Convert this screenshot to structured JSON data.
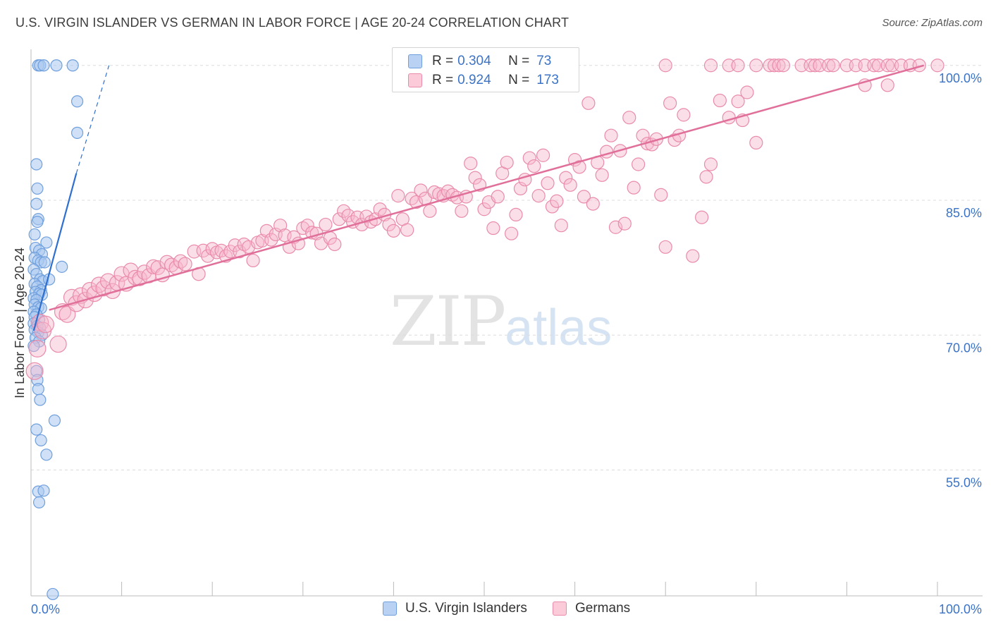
{
  "header": {
    "title": "U.S. VIRGIN ISLANDER VS GERMAN IN LABOR FORCE | AGE 20-24 CORRELATION CHART",
    "source": "Source: ZipAtlas.com"
  },
  "watermark": {
    "zip": "ZIP",
    "atlas": "atlas"
  },
  "legend": {
    "rows": [
      {
        "r_label": "R =",
        "r_value": "0.304",
        "n_label": "N =",
        "n_value": "73"
      },
      {
        "r_label": "R =",
        "r_value": "0.924",
        "n_label": "N =",
        "n_value": "173"
      }
    ]
  },
  "colors": {
    "blue_fill": "#a9c8f0",
    "blue_stroke": "#6f9fdc",
    "blue_line": "#2e6fd0",
    "pink_fill": "#f7b9cd",
    "pink_stroke": "#e98bab",
    "pink_line": "#e0709a",
    "tick_label": "#3b73c7"
  },
  "chart_data": {
    "type": "scatter",
    "title": "U.S. VIRGIN ISLANDER VS GERMAN IN LABOR FORCE | AGE 20-24 CORRELATION CHART",
    "xlabel": "",
    "ylabel": "In Labor Force | Age 20-24",
    "xlim": [
      0,
      100
    ],
    "ylim": [
      41,
      101
    ],
    "x_tick_labels": [
      {
        "value": 0,
        "label": "0.0%"
      },
      {
        "value": 100,
        "label": "100.0%"
      }
    ],
    "y_tick_labels": [
      {
        "value": 100,
        "label": "100.0%"
      },
      {
        "value": 85,
        "label": "85.0%"
      },
      {
        "value": 70,
        "label": "70.0%"
      },
      {
        "value": 55,
        "label": "55.0%"
      }
    ],
    "grid": true,
    "series": [
      {
        "name": "U.S. Virgin Islanders",
        "r": 0.304,
        "n": 73,
        "trend": {
          "x0": 0.3,
          "y0": 70.5,
          "x1": 5.0,
          "y1": 88.0
        },
        "trend_extension": {
          "x0": 5.0,
          "y0": 88.0,
          "x1": 8.6,
          "y1": 100.0
        },
        "points": [
          [
            0.8,
            100
          ],
          [
            1.0,
            100
          ],
          [
            1.4,
            100
          ],
          [
            2.8,
            100
          ],
          [
            4.6,
            100
          ],
          [
            5.1,
            96
          ],
          [
            5.1,
            92.5
          ],
          [
            0.6,
            89
          ],
          [
            0.7,
            86.3
          ],
          [
            0.6,
            84.6
          ],
          [
            0.8,
            82.9
          ],
          [
            0.7,
            82.6
          ],
          [
            0.4,
            81.2
          ],
          [
            1.7,
            80.3
          ],
          [
            0.5,
            79.7
          ],
          [
            0.9,
            79.4
          ],
          [
            1.2,
            79
          ],
          [
            0.4,
            78.6
          ],
          [
            0.8,
            78.3
          ],
          [
            1.1,
            78.1
          ],
          [
            1.5,
            78.1
          ],
          [
            3.4,
            77.6
          ],
          [
            0.3,
            77.3
          ],
          [
            0.6,
            76.8
          ],
          [
            1.0,
            76.2
          ],
          [
            1.3,
            76.0
          ],
          [
            2.0,
            76.2
          ],
          [
            0.4,
            75.7
          ],
          [
            0.7,
            75.4
          ],
          [
            1.1,
            75.0
          ],
          [
            0.5,
            74.8
          ],
          [
            0.9,
            74.6
          ],
          [
            1.2,
            74.5
          ],
          [
            0.3,
            74.1
          ],
          [
            0.6,
            73.9
          ],
          [
            0.4,
            73.4
          ],
          [
            0.8,
            73.1
          ],
          [
            1.1,
            73.0
          ],
          [
            0.3,
            72.6
          ],
          [
            0.6,
            72.3
          ],
          [
            0.4,
            72.0
          ],
          [
            0.9,
            71.7
          ],
          [
            0.3,
            71.3
          ],
          [
            0.7,
            71.0
          ],
          [
            1.0,
            70.8
          ],
          [
            0.4,
            70.6
          ],
          [
            0.8,
            70.3
          ],
          [
            1.2,
            70.0
          ],
          [
            0.5,
            69.7
          ],
          [
            0.9,
            69.3
          ],
          [
            0.3,
            68.8
          ],
          [
            0.6,
            66.0
          ],
          [
            0.7,
            65.0
          ],
          [
            0.8,
            64.0
          ],
          [
            1.0,
            62.8
          ],
          [
            2.6,
            60.5
          ],
          [
            0.6,
            59.5
          ],
          [
            1.1,
            58.3
          ],
          [
            1.7,
            56.7
          ],
          [
            0.8,
            52.6
          ],
          [
            1.4,
            52.7
          ],
          [
            0.9,
            51.4
          ],
          [
            2.4,
            41.2
          ]
        ]
      },
      {
        "name": "Germans",
        "r": 0.924,
        "n": 173,
        "trend": {
          "x0": 2.0,
          "y0": 72.8,
          "x1": 98.5,
          "y1": 100.0
        },
        "points": [
          [
            0.4,
            66
          ],
          [
            0.7,
            68.5
          ],
          [
            1.0,
            71.4
          ],
          [
            1.3,
            70.5
          ],
          [
            1.6,
            71.2
          ],
          [
            3.0,
            69
          ],
          [
            3.5,
            72.6
          ],
          [
            4.0,
            72.3
          ],
          [
            4.5,
            74.2
          ],
          [
            5.0,
            73.5
          ],
          [
            5.5,
            74.4
          ],
          [
            6.0,
            73.9
          ],
          [
            6.5,
            75.0
          ],
          [
            7.0,
            74.6
          ],
          [
            7.5,
            75.6
          ],
          [
            8.0,
            75.2
          ],
          [
            8.5,
            76.0
          ],
          [
            9.0,
            74.9
          ],
          [
            9.5,
            75.8
          ],
          [
            10.0,
            76.8
          ],
          [
            10.5,
            75.7
          ],
          [
            11.0,
            77.2
          ],
          [
            11.5,
            76.4
          ],
          [
            12.0,
            76.3
          ],
          [
            12.5,
            77.0
          ],
          [
            13.0,
            76.6
          ],
          [
            13.5,
            77.6
          ],
          [
            14.0,
            77.5
          ],
          [
            14.5,
            76.7
          ],
          [
            15.0,
            78.1
          ],
          [
            15.5,
            77.8
          ],
          [
            16.0,
            77.5
          ],
          [
            16.5,
            78.2
          ],
          [
            17.0,
            77.9
          ],
          [
            18.0,
            79.3
          ],
          [
            18.5,
            76.8
          ],
          [
            19.0,
            79.4
          ],
          [
            19.5,
            78.8
          ],
          [
            20.0,
            79.6
          ],
          [
            20.5,
            79.2
          ],
          [
            21.0,
            79.4
          ],
          [
            21.5,
            78.8
          ],
          [
            22.0,
            79.3
          ],
          [
            22.5,
            80.0
          ],
          [
            23.0,
            79.3
          ],
          [
            23.5,
            80.1
          ],
          [
            24.0,
            79.8
          ],
          [
            24.5,
            78.3
          ],
          [
            25.0,
            80.3
          ],
          [
            25.5,
            80.5
          ],
          [
            26.0,
            81.6
          ],
          [
            26.5,
            80.6
          ],
          [
            27.0,
            81.2
          ],
          [
            27.5,
            82.2
          ],
          [
            28.0,
            81.1
          ],
          [
            28.5,
            79.8
          ],
          [
            29.0,
            80.9
          ],
          [
            29.5,
            80.2
          ],
          [
            30.0,
            81.9
          ],
          [
            30.5,
            82.2
          ],
          [
            31.0,
            81.4
          ],
          [
            31.5,
            81.3
          ],
          [
            32.0,
            80.2
          ],
          [
            32.5,
            82.3
          ],
          [
            33.0,
            80.8
          ],
          [
            33.5,
            80.1
          ],
          [
            34.0,
            82.9
          ],
          [
            34.5,
            83.8
          ],
          [
            35.0,
            83.3
          ],
          [
            35.5,
            82.6
          ],
          [
            36.0,
            83.1
          ],
          [
            36.5,
            82.3
          ],
          [
            37.0,
            83.2
          ],
          [
            37.5,
            82.6
          ],
          [
            38.0,
            82.9
          ],
          [
            38.5,
            84.0
          ],
          [
            39.0,
            83.4
          ],
          [
            39.5,
            82.3
          ],
          [
            40.0,
            81.6
          ],
          [
            40.5,
            85.5
          ],
          [
            41.0,
            82.9
          ],
          [
            41.5,
            81.7
          ],
          [
            42.0,
            85.2
          ],
          [
            42.5,
            84.8
          ],
          [
            43.0,
            86.1
          ],
          [
            43.5,
            85.2
          ],
          [
            44.0,
            83.8
          ],
          [
            44.5,
            85.9
          ],
          [
            45.0,
            85.7
          ],
          [
            45.5,
            85.5
          ],
          [
            46.0,
            86.0
          ],
          [
            46.5,
            85.6
          ],
          [
            47.0,
            85.3
          ],
          [
            47.5,
            83.8
          ],
          [
            48.0,
            85.4
          ],
          [
            48.5,
            89.1
          ],
          [
            49.0,
            87.5
          ],
          [
            49.5,
            86.7
          ],
          [
            50.0,
            84.0
          ],
          [
            50.5,
            84.8
          ],
          [
            51.0,
            81.9
          ],
          [
            51.5,
            85.4
          ],
          [
            52.0,
            88.0
          ],
          [
            52.5,
            89.2
          ],
          [
            53.0,
            81.3
          ],
          [
            53.5,
            83.4
          ],
          [
            54.0,
            86.3
          ],
          [
            54.5,
            87.3
          ],
          [
            55.0,
            89.7
          ],
          [
            55.5,
            88.8
          ],
          [
            56.0,
            85.5
          ],
          [
            56.5,
            90.0
          ],
          [
            57.0,
            86.9
          ],
          [
            57.5,
            84.3
          ],
          [
            58.0,
            84.9
          ],
          [
            58.5,
            82.2
          ],
          [
            59.0,
            87.5
          ],
          [
            59.5,
            86.7
          ],
          [
            60.0,
            89.5
          ],
          [
            60.5,
            88.7
          ],
          [
            61.0,
            85.4
          ],
          [
            61.5,
            95.8
          ],
          [
            62.0,
            84.6
          ],
          [
            62.5,
            89.2
          ],
          [
            63.0,
            87.8
          ],
          [
            63.5,
            90.4
          ],
          [
            64.0,
            92.2
          ],
          [
            64.5,
            82.0
          ],
          [
            65.0,
            90.5
          ],
          [
            65.5,
            82.4
          ],
          [
            66.0,
            94.2
          ],
          [
            66.5,
            86.4
          ],
          [
            67.0,
            89.0
          ],
          [
            67.5,
            92.2
          ],
          [
            68.0,
            91.3
          ],
          [
            68.5,
            91.2
          ],
          [
            69.0,
            91.8
          ],
          [
            69.5,
            85.6
          ],
          [
            70.0,
            79.8
          ],
          [
            70.5,
            95.8
          ],
          [
            71.0,
            91.7
          ],
          [
            71.5,
            92.2
          ],
          [
            72.0,
            94.5
          ],
          [
            73.0,
            78.8
          ],
          [
            74.0,
            83.1
          ],
          [
            74.5,
            87.6
          ],
          [
            75.0,
            89.0
          ],
          [
            76.0,
            96.1
          ],
          [
            77.0,
            94.2
          ],
          [
            78.0,
            96.0
          ],
          [
            78.5,
            93.9
          ],
          [
            79.0,
            97.0
          ],
          [
            80.0,
            91.4
          ],
          [
            70.0,
            100
          ],
          [
            75.0,
            100
          ],
          [
            77.0,
            100
          ],
          [
            78.0,
            100
          ],
          [
            80.0,
            100
          ],
          [
            81.5,
            100
          ],
          [
            82.0,
            100
          ],
          [
            82.5,
            100
          ],
          [
            83.0,
            100
          ],
          [
            85.0,
            100
          ],
          [
            86.0,
            100
          ],
          [
            86.5,
            100
          ],
          [
            87.0,
            100
          ],
          [
            88.0,
            100
          ],
          [
            88.5,
            100
          ],
          [
            90.0,
            100
          ],
          [
            91.0,
            100
          ],
          [
            92.0,
            100
          ],
          [
            93.0,
            100
          ],
          [
            93.5,
            100
          ],
          [
            94.5,
            100
          ],
          [
            95.0,
            100
          ],
          [
            96.0,
            100
          ],
          [
            97.0,
            100
          ],
          [
            98.0,
            100
          ],
          [
            100.0,
            100
          ],
          [
            92.0,
            97.8
          ],
          [
            94.5,
            97.8
          ]
        ]
      }
    ]
  },
  "bottom_legend": {
    "items": [
      "U.S. Virgin Islanders",
      "Germans"
    ]
  }
}
